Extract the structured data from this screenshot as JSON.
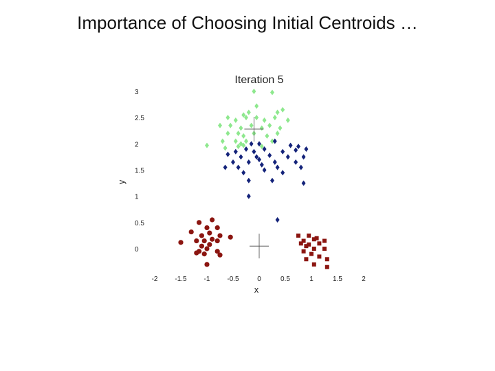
{
  "slide": {
    "title": "Importance of Choosing Initial Centroids …"
  },
  "chart_data": {
    "type": "scatter",
    "title": "Iteration 5",
    "xlabel": "x",
    "ylabel": "y",
    "xlim": [
      -2,
      2
    ],
    "ylim": [
      -0.2,
      3
    ],
    "x_ticks": [
      "-2",
      "-1.5",
      "-1",
      "-0.5",
      "0",
      "0.5",
      "1",
      "1.5",
      "2"
    ],
    "y_ticks": [
      "0",
      "0.5",
      "1",
      "1.5",
      "2",
      "2.5",
      "3"
    ],
    "grid": false,
    "colors": {
      "light_green": "#8ee88e",
      "navy": "#14237a",
      "dark_red": "#8b1510"
    },
    "series": [
      {
        "marker": "diamond",
        "color": "light_green",
        "points": [
          [
            -0.1,
            3.0
          ],
          [
            0.25,
            2.98
          ],
          [
            -0.05,
            2.72
          ],
          [
            -0.2,
            2.6
          ],
          [
            -0.3,
            2.55
          ],
          [
            0.35,
            2.6
          ],
          [
            0.45,
            2.65
          ],
          [
            -0.6,
            2.5
          ],
          [
            -0.45,
            2.45
          ],
          [
            -0.25,
            2.5
          ],
          [
            -0.05,
            2.5
          ],
          [
            0.1,
            2.45
          ],
          [
            0.3,
            2.5
          ],
          [
            0.55,
            2.45
          ],
          [
            -0.75,
            2.35
          ],
          [
            -0.55,
            2.35
          ],
          [
            -0.35,
            2.3
          ],
          [
            -0.15,
            2.35
          ],
          [
            0.05,
            2.3
          ],
          [
            0.2,
            2.35
          ],
          [
            0.4,
            2.3
          ],
          [
            -0.6,
            2.2
          ],
          [
            -0.4,
            2.2
          ],
          [
            -0.3,
            2.15
          ],
          [
            -0.1,
            2.2
          ],
          [
            0.15,
            2.15
          ],
          [
            0.35,
            2.2
          ],
          [
            -0.7,
            2.05
          ],
          [
            -0.45,
            2.05
          ],
          [
            -0.35,
            2.0
          ],
          [
            -0.25,
            2.05
          ],
          [
            0.25,
            2.05
          ],
          [
            -1.0,
            1.97
          ],
          [
            -0.65,
            1.92
          ],
          [
            -0.4,
            1.95
          ],
          [
            -0.3,
            1.97
          ],
          [
            0.05,
            1.95
          ]
        ]
      },
      {
        "marker": "diamond",
        "color": "navy",
        "points": [
          [
            -0.15,
            2.0
          ],
          [
            0.0,
            2.0
          ],
          [
            0.3,
            2.05
          ],
          [
            0.6,
            1.97
          ],
          [
            0.75,
            1.95
          ],
          [
            0.9,
            1.9
          ],
          [
            -0.45,
            1.85
          ],
          [
            -0.25,
            1.9
          ],
          [
            -0.1,
            1.85
          ],
          [
            0.1,
            1.9
          ],
          [
            0.45,
            1.85
          ],
          [
            0.7,
            1.88
          ],
          [
            -0.6,
            1.8
          ],
          [
            -0.35,
            1.75
          ],
          [
            -0.05,
            1.75
          ],
          [
            0.2,
            1.78
          ],
          [
            0.55,
            1.75
          ],
          [
            0.85,
            1.75
          ],
          [
            -0.5,
            1.65
          ],
          [
            -0.2,
            1.65
          ],
          [
            0.0,
            1.7
          ],
          [
            0.3,
            1.65
          ],
          [
            0.7,
            1.65
          ],
          [
            -0.65,
            1.55
          ],
          [
            -0.4,
            1.55
          ],
          [
            0.05,
            1.6
          ],
          [
            0.35,
            1.55
          ],
          [
            0.8,
            1.55
          ],
          [
            -0.3,
            1.45
          ],
          [
            0.1,
            1.5
          ],
          [
            0.45,
            1.45
          ],
          [
            -0.2,
            1.3
          ],
          [
            0.25,
            1.3
          ],
          [
            0.85,
            1.25
          ],
          [
            -0.2,
            1.0
          ],
          [
            0.35,
            0.55
          ]
        ]
      },
      {
        "marker": "circle",
        "color": "dark_red",
        "points": [
          [
            -0.9,
            0.55
          ],
          [
            -1.15,
            0.5
          ],
          [
            -1.0,
            0.4
          ],
          [
            -0.8,
            0.4
          ],
          [
            -1.3,
            0.32
          ],
          [
            -1.1,
            0.25
          ],
          [
            -0.95,
            0.3
          ],
          [
            -0.75,
            0.25
          ],
          [
            -0.55,
            0.22
          ],
          [
            -1.5,
            0.12
          ],
          [
            -1.2,
            0.15
          ],
          [
            -1.05,
            0.15
          ],
          [
            -0.9,
            0.18
          ],
          [
            -0.8,
            0.15
          ],
          [
            -1.1,
            0.05
          ],
          [
            -0.95,
            0.08
          ],
          [
            -1.15,
            -0.05
          ],
          [
            -1.0,
            0.0
          ],
          [
            -0.8,
            -0.05
          ],
          [
            -1.2,
            -0.08
          ],
          [
            -1.05,
            -0.1
          ],
          [
            -0.75,
            -0.12
          ],
          [
            -1.0,
            -0.3
          ]
        ]
      },
      {
        "marker": "square",
        "color": "dark_red",
        "points": [
          [
            0.75,
            0.25
          ],
          [
            0.95,
            0.25
          ],
          [
            1.1,
            0.2
          ],
          [
            0.85,
            0.15
          ],
          [
            1.05,
            0.18
          ],
          [
            1.25,
            0.15
          ],
          [
            0.8,
            0.1
          ],
          [
            0.95,
            0.08
          ],
          [
            1.15,
            0.1
          ],
          [
            0.9,
            0.05
          ],
          [
            1.05,
            0.0
          ],
          [
            1.25,
            0.0
          ],
          [
            0.85,
            -0.05
          ],
          [
            1.0,
            -0.1
          ],
          [
            1.15,
            -0.15
          ],
          [
            1.3,
            -0.2
          ],
          [
            0.9,
            -0.2
          ],
          [
            1.05,
            -0.3
          ],
          [
            1.3,
            -0.35
          ]
        ]
      }
    ],
    "centroids": [
      [
        -0.1,
        2.28
      ],
      [
        0.0,
        0.05
      ]
    ]
  }
}
